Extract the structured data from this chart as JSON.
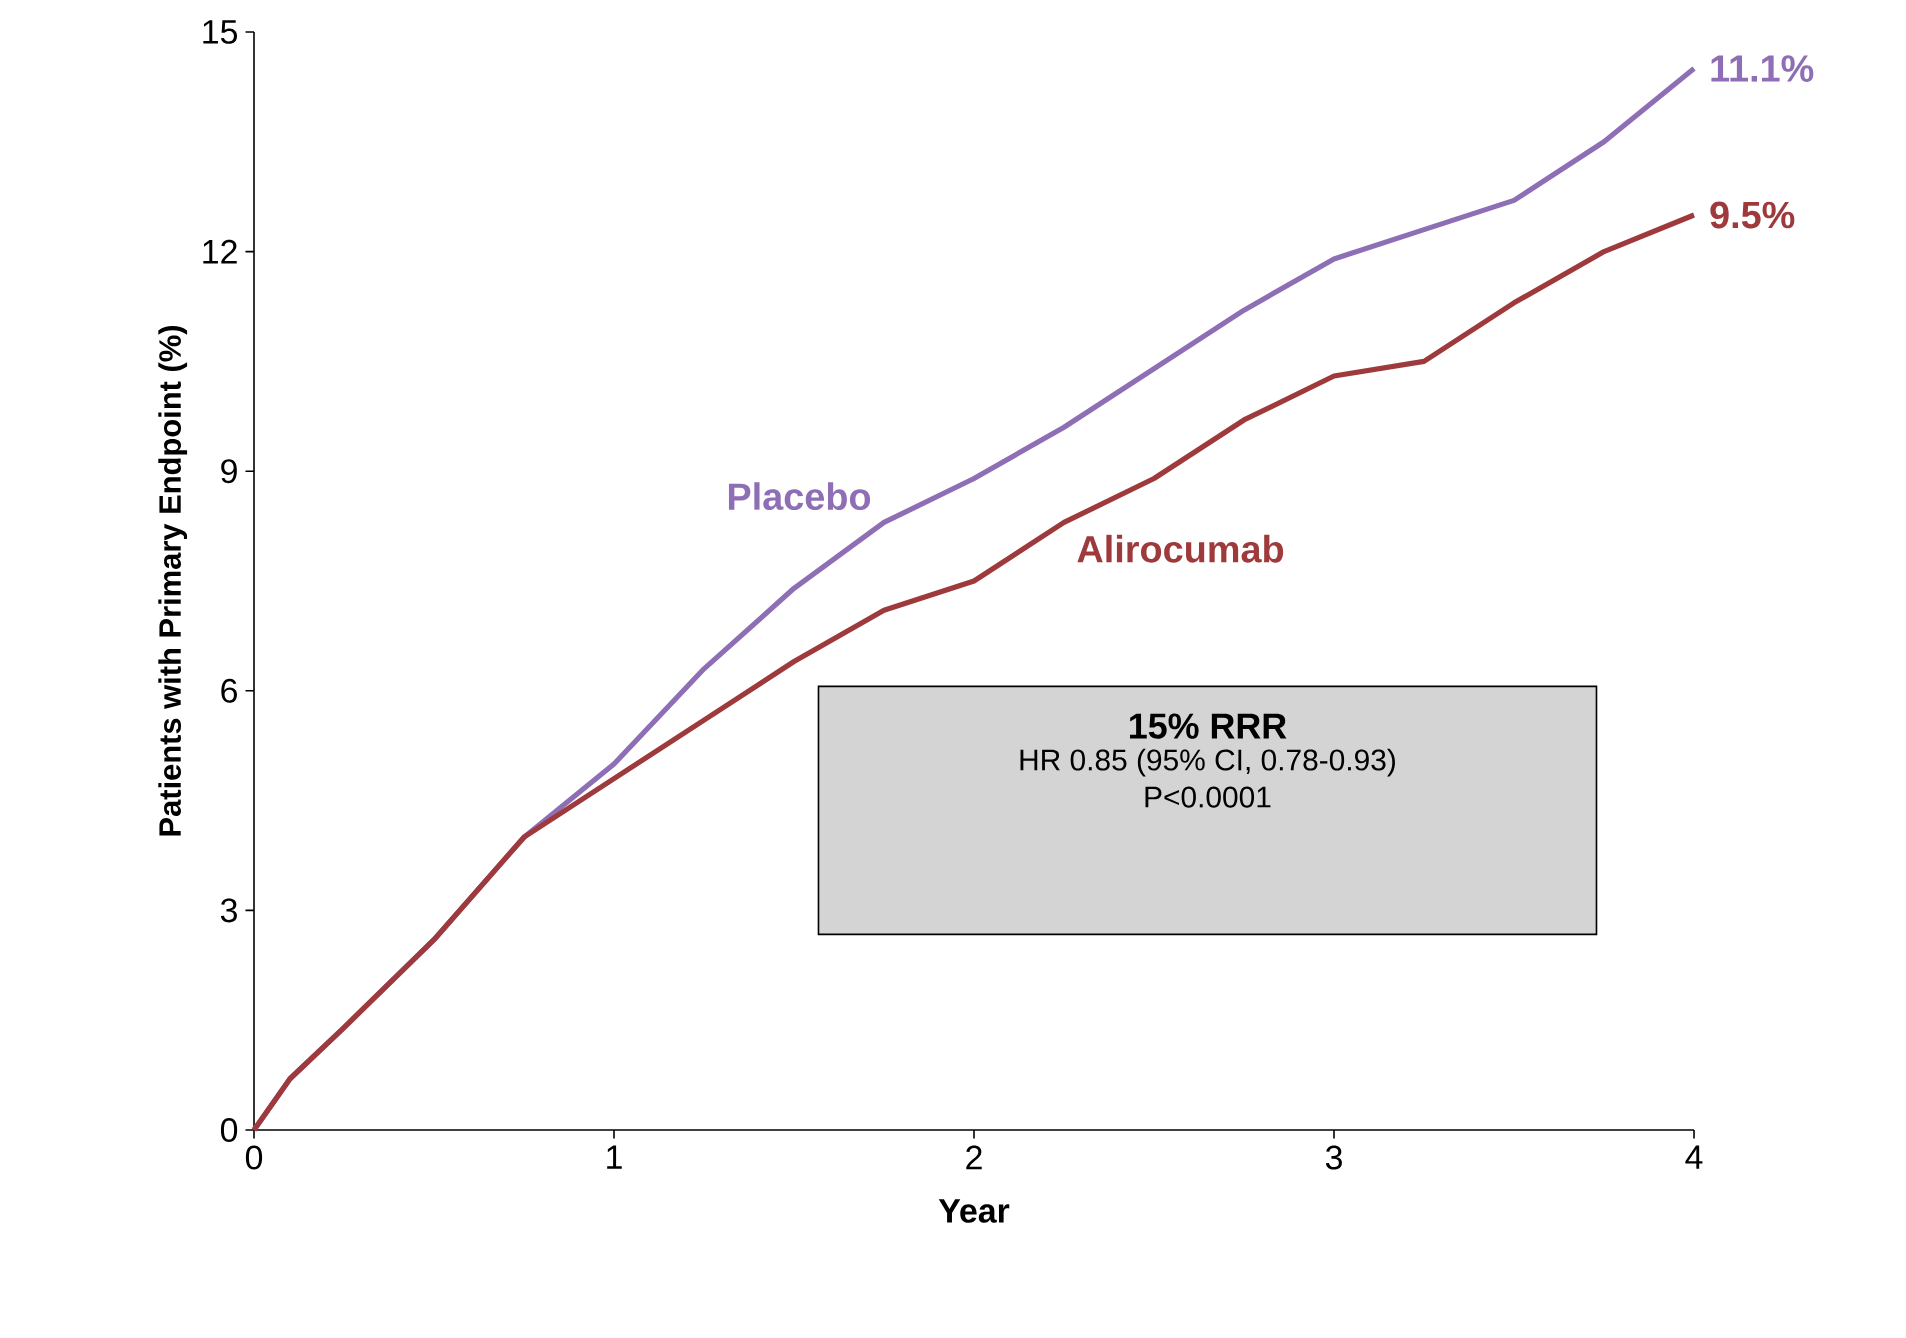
{
  "chart_data": {
    "type": "line",
    "xlabel": "Year",
    "ylabel": "Patients with Primary Endpoint (%)",
    "xlim": [
      0,
      4
    ],
    "xticks": [
      0,
      1,
      2,
      3,
      4
    ],
    "ylim": [
      0,
      15
    ],
    "yticks": [
      0,
      3,
      6,
      9,
      12,
      15
    ],
    "grid": false,
    "legend": false,
    "marker": "none",
    "line_style": "solid",
    "x": [
      0,
      0.1,
      0.25,
      0.5,
      0.75,
      1.0,
      1.25,
      1.5,
      1.75,
      2.0,
      2.25,
      2.5,
      2.75,
      3.0,
      3.25,
      3.5,
      3.75,
      4.0
    ],
    "series": [
      {
        "name": "Placebo",
        "color": "#8e6fb5",
        "values": [
          0,
          0.7,
          1.4,
          2.6,
          4.0,
          5.0,
          6.3,
          7.4,
          8.3,
          8.9,
          9.6,
          10.4,
          11.2,
          11.9,
          12.3,
          12.7,
          13.5,
          14.5
        ]
      },
      {
        "name": "Alirocumab",
        "color": "#9e3a3c",
        "values": [
          0,
          0.7,
          1.4,
          2.6,
          4.0,
          4.8,
          5.6,
          6.4,
          7.1,
          7.5,
          8.3,
          8.9,
          9.7,
          10.3,
          10.5,
          11.3,
          12.0,
          12.5
        ]
      }
    ],
    "annotations": [
      {
        "text": "11.1%",
        "x": 4,
        "y": 14.5
      },
      {
        "text": "9.5%",
        "x": 4,
        "y": 12.5
      },
      "15% RRR",
      "HR 0.85 (95% CI, 0.78-0.93)",
      "P<0.0001"
    ]
  }
}
